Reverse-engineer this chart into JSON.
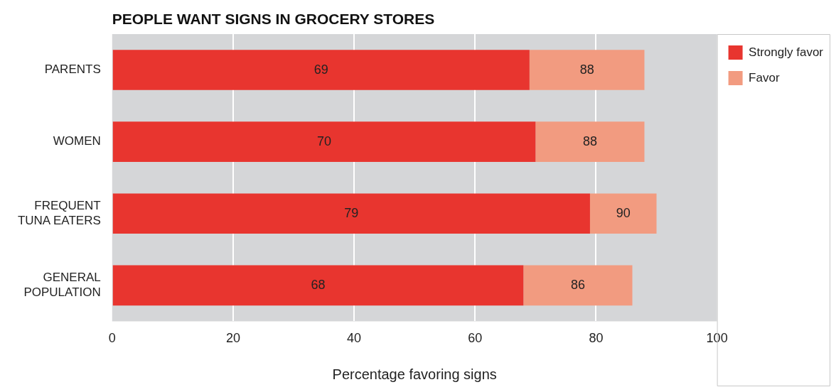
{
  "chart_data": {
    "type": "bar",
    "orientation": "horizontal",
    "stacked": true,
    "title": "PEOPLE WANT SIGNS IN GROCERY STORES",
    "xlabel": "Percentage favoring signs",
    "categories": [
      "PARENTS",
      "WOMEN",
      "FREQUENT TUNA EATERS",
      "GENERAL POPULATION"
    ],
    "series": [
      {
        "name": "Strongly favor",
        "color": "#e8352f",
        "values": [
          69,
          70,
          79,
          68
        ],
        "value_labels": [
          "69",
          "70",
          "79",
          "68"
        ]
      },
      {
        "name": "Favor",
        "color": "#f29b80",
        "values": [
          19,
          18,
          11,
          18
        ]
      }
    ],
    "totals": [
      "88",
      "88",
      "90",
      "86"
    ],
    "xlim": [
      0,
      100
    ],
    "xticks": [
      0,
      20,
      40,
      60,
      80,
      100
    ],
    "grid": "x",
    "legend": "top right"
  }
}
